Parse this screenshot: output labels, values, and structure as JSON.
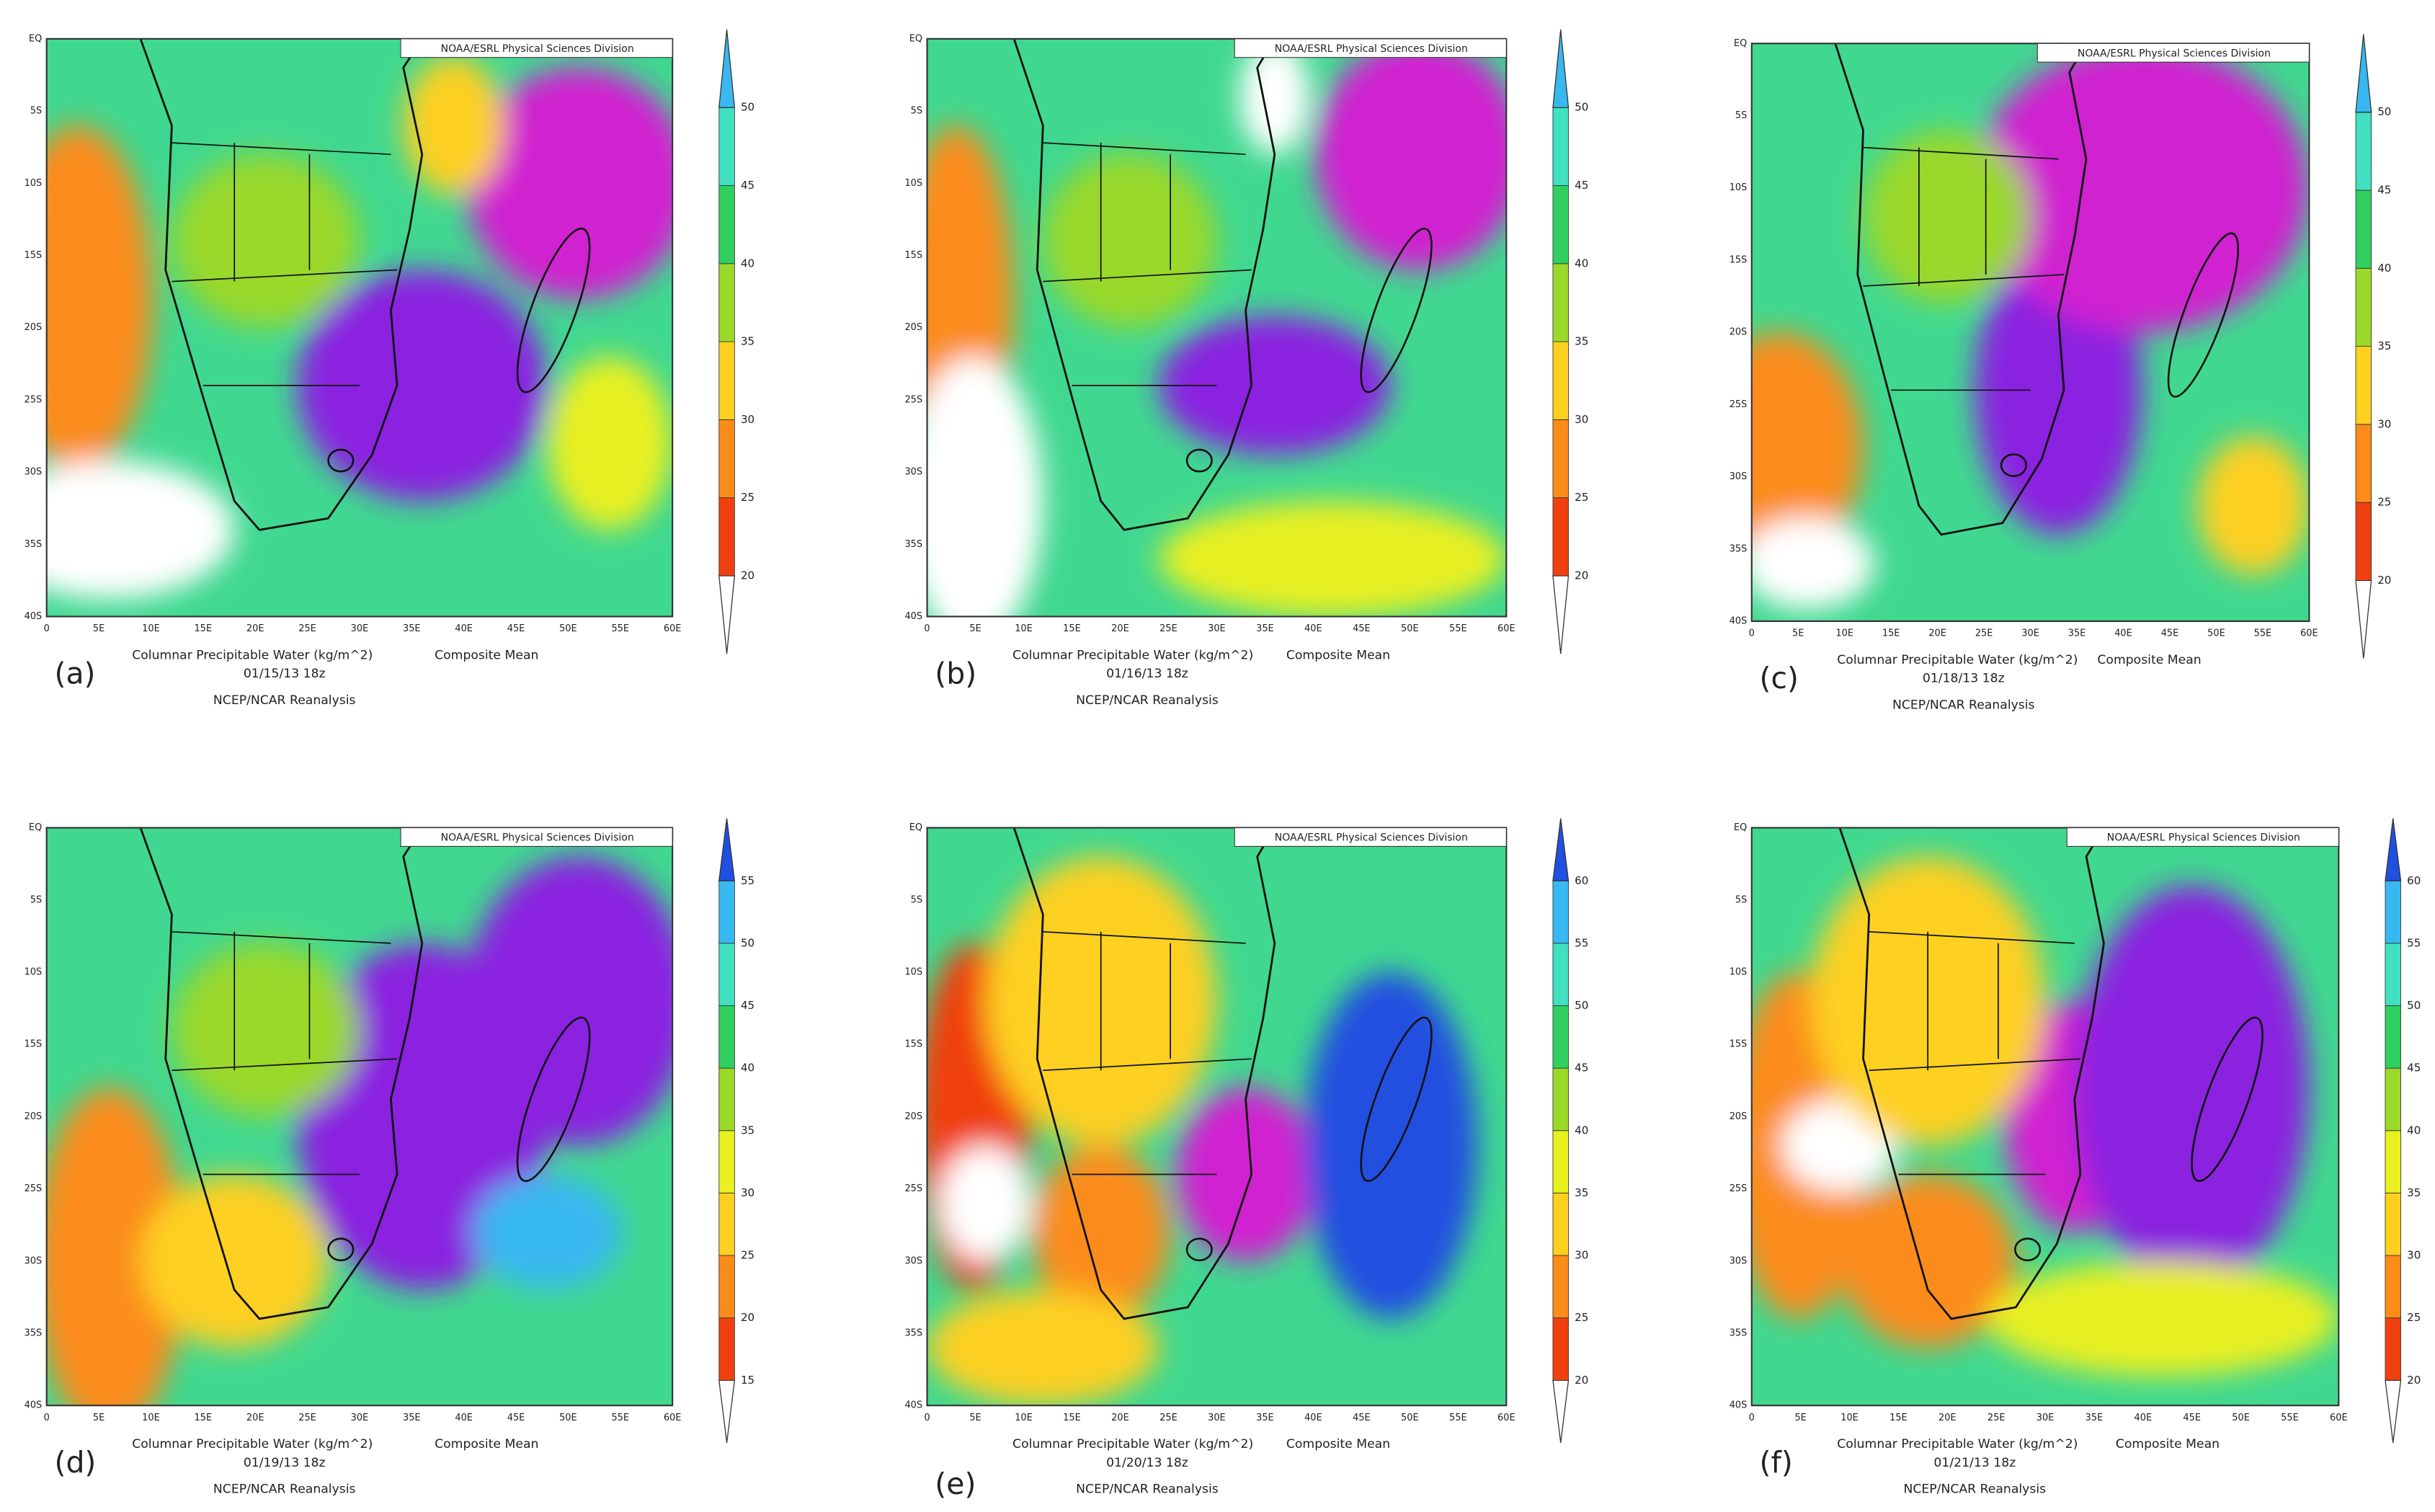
{
  "header": "NOAA/ESRL Physical Sciences Division",
  "caption": "Columnar Precipitable Water (kg/m^2)",
  "stat": "Composite Mean",
  "source": "NCEP/NCAR Reanalysis",
  "x_ticks": [
    "0",
    "5E",
    "10E",
    "15E",
    "20E",
    "25E",
    "30E",
    "35E",
    "40E",
    "45E",
    "50E",
    "55E",
    "60E"
  ],
  "y_ticks": [
    "EQ",
    "5S",
    "10S",
    "15S",
    "20S",
    "25S",
    "30S",
    "35S",
    "40S"
  ],
  "panels": [
    {
      "label": "(a)",
      "date": "01/15/13 18z",
      "colorbar": [
        20,
        25,
        30,
        35,
        40,
        45,
        50
      ]
    },
    {
      "label": "(b)",
      "date": "01/16/13 18z",
      "colorbar": [
        20,
        25,
        30,
        35,
        40,
        45,
        50
      ]
    },
    {
      "label": "(c)",
      "date": "01/18/13 18z",
      "colorbar": [
        20,
        25,
        30,
        35,
        40,
        45,
        50
      ]
    },
    {
      "label": "(d)",
      "date": "01/19/13 18z",
      "colorbar": [
        15,
        20,
        25,
        30,
        35,
        40,
        45,
        50,
        55
      ]
    },
    {
      "label": "(e)",
      "date": "01/20/13 18z",
      "colorbar": [
        20,
        25,
        30,
        35,
        40,
        45,
        50,
        55,
        60
      ]
    },
    {
      "label": "(f)",
      "date": "01/21/13 18z",
      "colorbar": [
        20,
        25,
        30,
        35,
        40,
        45,
        50,
        55,
        60
      ]
    }
  ]
}
